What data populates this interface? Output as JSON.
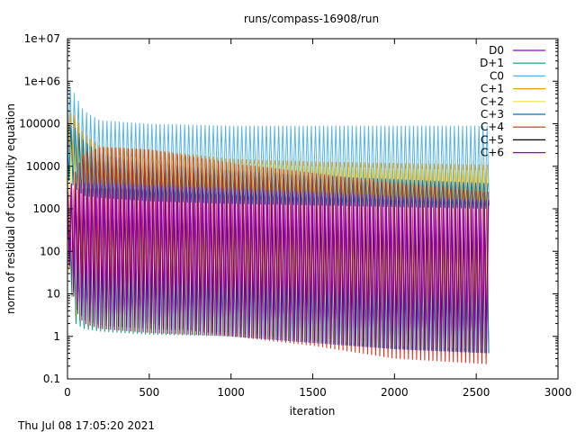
{
  "chart_data": {
    "type": "line",
    "title": "runs/compass-16908/run",
    "xlabel": "iteration",
    "ylabel": "norm of residual of continuity equation",
    "timestamp": "Thu Jul 08 17:05:20 2021",
    "xlim": [
      0,
      3000
    ],
    "ylim": [
      0.1,
      10000000
    ],
    "yscale": "log",
    "grid": false,
    "legend_position": "top-right",
    "x_ticks": [
      "0",
      "500",
      "1000",
      "1500",
      "2000",
      "2500",
      "3000"
    ],
    "x_tick_values": [
      0,
      500,
      1000,
      1500,
      2000,
      2500,
      3000
    ],
    "y_ticks": [
      "0.1",
      "1",
      "10",
      "100",
      "1000",
      "10000",
      "100000",
      "1e+06",
      "1e+07"
    ],
    "y_tick_values": [
      0.1,
      1,
      10,
      100,
      1000,
      10000,
      100000,
      1000000,
      10000000
    ],
    "oscillation_period": 25,
    "series": [
      {
        "name": "D0",
        "color": "#9400d3",
        "x": [
          0,
          50,
          100,
          200,
          500,
          1000,
          1500,
          2000,
          2580
        ],
        "high": [
          3000,
          3000,
          3000,
          3000,
          3000,
          2500,
          2200,
          1800,
          1500
        ],
        "low": [
          100,
          3,
          1.8,
          1.5,
          1.2,
          1,
          0.7,
          0.5,
          0.4
        ]
      },
      {
        "name": "D+1",
        "color": "#009e73",
        "x": [
          0,
          50,
          100,
          200,
          500,
          1000,
          1500,
          2000,
          2580
        ],
        "high": [
          200,
          150,
          100,
          80,
          70,
          60,
          55,
          50,
          45
        ],
        "low": [
          50,
          2,
          1.5,
          1.3,
          1.1,
          1,
          0.7,
          0.5,
          0.4
        ]
      },
      {
        "name": "C0",
        "color": "#56b4e9",
        "x": [
          0,
          25,
          100,
          200,
          500,
          1000,
          1500,
          2000,
          2580
        ],
        "high": [
          800000,
          700000,
          200000,
          120000,
          100000,
          90000,
          90000,
          90000,
          90000
        ],
        "low": [
          20000,
          15000,
          5000,
          4000,
          3000,
          2500,
          2000,
          1500,
          1200
        ]
      },
      {
        "name": "C+1",
        "color": "#e69f00",
        "x": [
          0,
          50,
          100,
          200,
          500,
          1000,
          1500,
          2000,
          2580
        ],
        "high": [
          200000,
          150000,
          60000,
          30000,
          25000,
          15000,
          13000,
          12000,
          11000
        ],
        "low": [
          20000,
          10000,
          5000,
          4000,
          3000,
          2500,
          2000,
          1500,
          1200
        ]
      },
      {
        "name": "C+2",
        "color": "#f0e442",
        "x": [
          0,
          50,
          100,
          200,
          500,
          1000,
          1500,
          2000,
          2580
        ],
        "high": [
          100000,
          60000,
          30000,
          20000,
          15000,
          12000,
          10000,
          9000,
          8000
        ],
        "low": [
          50,
          3,
          2,
          1.5,
          1.2,
          1,
          0.8,
          0.6,
          0.5
        ]
      },
      {
        "name": "C+3",
        "color": "#0072b2",
        "x": [
          0,
          50,
          100,
          200,
          500,
          1000,
          1500,
          2000,
          2580
        ],
        "high": [
          100000,
          80000,
          40000,
          20000,
          12000,
          8000,
          6000,
          5000,
          4000
        ],
        "low": [
          5000,
          3000,
          2000,
          1800,
          1500,
          1300,
          1200,
          1100,
          1000
        ]
      },
      {
        "name": "C+4",
        "color": "#e51e10",
        "x": [
          0,
          50,
          100,
          200,
          500,
          1000,
          1500,
          2000,
          2580
        ],
        "high": [
          2000,
          8000,
          20000,
          28000,
          25000,
          12000,
          7000,
          4000,
          2500
        ],
        "low": [
          100,
          30,
          10,
          5,
          2,
          1,
          0.6,
          0.3,
          0.22
        ]
      },
      {
        "name": "C+5",
        "color": "#000000",
        "x": [
          0,
          50,
          100,
          200,
          500,
          1000,
          1500,
          2000,
          2580
        ],
        "high": [
          3000,
          3000,
          3000,
          3000,
          3000,
          2500,
          2000,
          1600,
          1400
        ],
        "low": [
          100,
          5,
          2.5,
          1.8,
          1.5,
          1.2,
          0.8,
          0.5,
          0.4
        ]
      },
      {
        "name": "C+6",
        "color": "#9400d3",
        "x": [
          0,
          50,
          100,
          200,
          500,
          1000,
          1500,
          2000,
          2580
        ],
        "high": [
          4000,
          4000,
          4000,
          4000,
          3500,
          3000,
          2500,
          2000,
          1600
        ],
        "low": [
          100,
          4,
          2,
          1.5,
          1.2,
          1,
          0.7,
          0.5,
          0.4
        ]
      }
    ]
  }
}
